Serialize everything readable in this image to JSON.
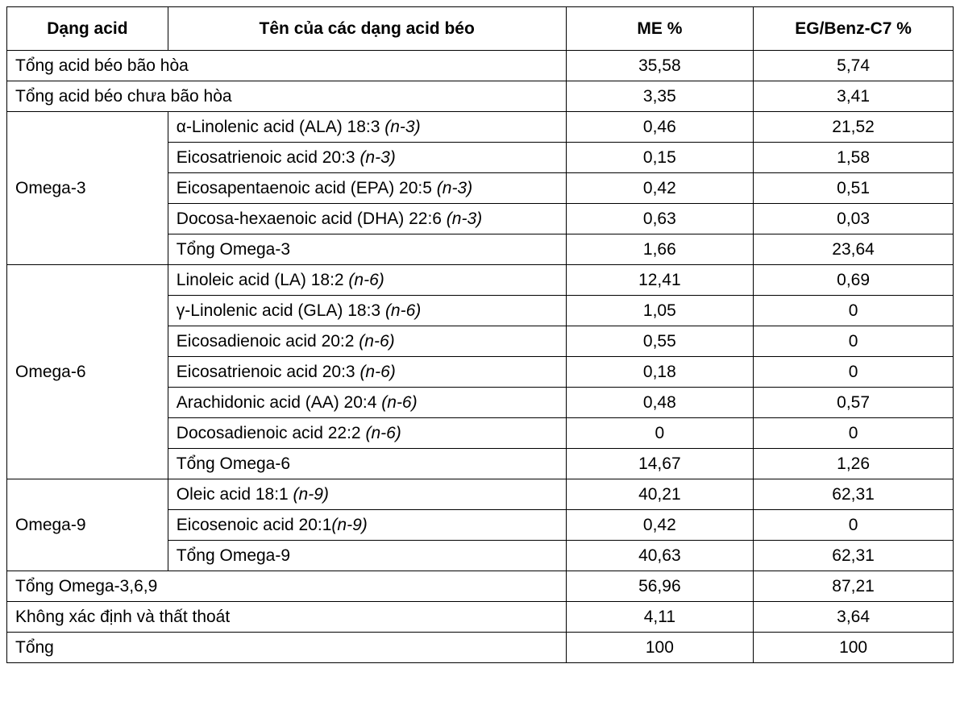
{
  "table": {
    "header": [
      "Dạng acid",
      "Tên của các dạng acid béo",
      "ME %",
      "EG/Benz-C7 %"
    ],
    "sections": [
      {
        "label": "Tổng acid béo bão hòa",
        "me": "35,58",
        "eg": "5,74"
      },
      {
        "label": "Tổng acid béo chưa bão hòa",
        "me": "3,35",
        "eg": "3,41"
      },
      {
        "group": "Omega-3",
        "rows": [
          {
            "name": "α-Linolenic acid (ALA) 18:3 ",
            "tag": "(n-3)",
            "me": "0,46",
            "eg": "21,52"
          },
          {
            "name": "Eicosatrienoic acid 20:3 ",
            "tag": "(n-3)",
            "me": "0,15",
            "eg": "1,58"
          },
          {
            "name": "Eicosapentaenoic acid (EPA) 20:5 ",
            "tag": "(n-3)",
            "me": "0,42",
            "eg": "0,51"
          },
          {
            "name": "Docosa-hexaenoic acid (DHA) 22:6 ",
            "tag": "(n-3)",
            "me": "0,63",
            "eg": "0,03"
          },
          {
            "name": "Tổng Omega-3",
            "me": "1,66",
            "eg": "23,64"
          }
        ]
      },
      {
        "group": "Omega-6",
        "rows": [
          {
            "name": "Linoleic acid (LA) 18:2 ",
            "tag": "(n-6)",
            "me": "12,41",
            "eg": "0,69"
          },
          {
            "name": "γ-Linolenic acid (GLA) 18:3 ",
            "tag": "(n-6)",
            "me": "1,05",
            "eg": "0"
          },
          {
            "name": "Eicosadienoic acid 20:2 ",
            "tag": "(n-6)",
            "me": "0,55",
            "eg": "0"
          },
          {
            "name": "Eicosatrienoic acid 20:3 ",
            "tag": "(n-6)",
            "me": "0,18",
            "eg": "0"
          },
          {
            "name": "Arachidonic acid (AA) 20:4 ",
            "tag": "(n-6)",
            "me": "0,48",
            "eg": "0,57"
          },
          {
            "name": "Docosadienoic acid 22:2 ",
            "tag": "(n-6)",
            "me": "0",
            "eg": "0"
          },
          {
            "name": "Tổng Omega-6",
            "me": "14,67",
            "eg": "1,26"
          }
        ]
      },
      {
        "group": "Omega-9",
        "rows": [
          {
            "name": "Oleic acid 18:1 ",
            "tag": "(n-9)",
            "me": "40,21",
            "eg": "62,31"
          },
          {
            "name": "Eicosenoic acid 20:1",
            "tag": "(n-9)",
            "me": "0,42",
            "eg": "0"
          },
          {
            "name": "Tổng Omega-9",
            "me": "40,63",
            "eg": "62,31"
          }
        ]
      },
      {
        "label": "Tổng Omega-3,6,9",
        "me": "56,96",
        "eg": "87,21"
      },
      {
        "label": "Không xác định và thất thoát",
        "me": "4,11",
        "eg": "3,64"
      },
      {
        "label": "Tổng",
        "me": "100",
        "eg": "100"
      }
    ]
  }
}
